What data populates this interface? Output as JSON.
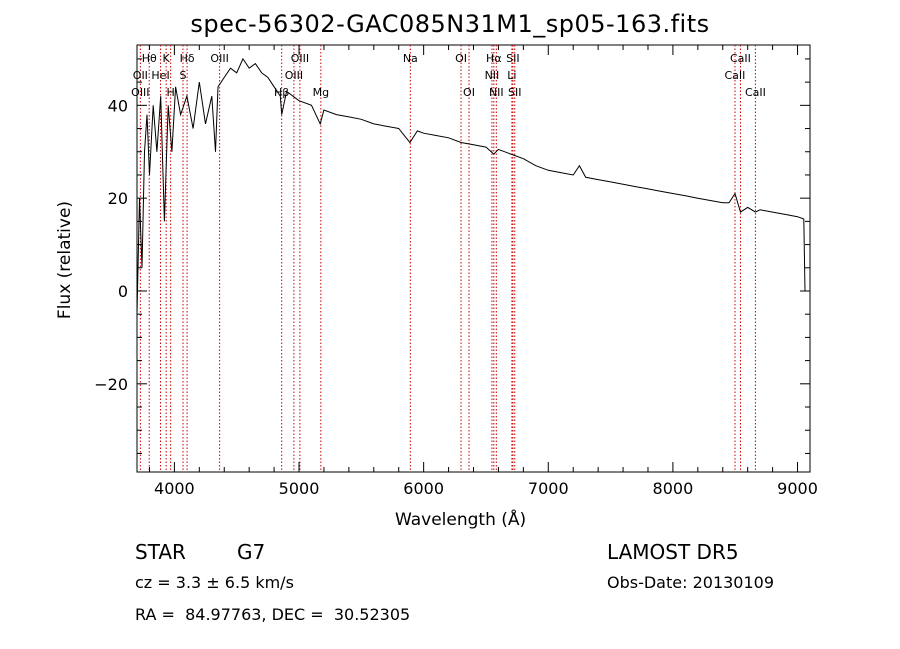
{
  "chart_data": {
    "type": "line",
    "title": "spec-56302-GAC085N31M1_sp05-163.fits",
    "xlabel": "Wavelength (Å)",
    "ylabel": "Flux (relative)",
    "xlim": [
      3700,
      9100
    ],
    "ylim": [
      -39,
      53
    ],
    "xticks": [
      4000,
      5000,
      6000,
      7000,
      8000,
      9000
    ],
    "yticks": [
      -20,
      0,
      20,
      40
    ],
    "line_color": "#000000",
    "marker_color": "#cc0000",
    "grid": false,
    "legend": "none",
    "series": [
      {
        "x": [
          3700,
          3720,
          3740,
          3760,
          3780,
          3800,
          3830,
          3860,
          3890,
          3920,
          3950,
          3980,
          4010,
          4050,
          4100,
          4150,
          4200,
          4250,
          4300,
          4330,
          4350,
          4400,
          4450,
          4500,
          4550,
          4600,
          4650,
          4700,
          4750,
          4800,
          4850,
          4861,
          4900,
          5000,
          5100,
          5170,
          5200,
          5300,
          5400,
          5500,
          5600,
          5700,
          5800,
          5890,
          5950,
          6000,
          6100,
          6200,
          6300,
          6400,
          6500,
          6563,
          6600,
          6700,
          6800,
          6900,
          7000,
          7100,
          7200,
          7250,
          7300,
          7400,
          7500,
          7600,
          7700,
          7800,
          7900,
          8000,
          8100,
          8200,
          8300,
          8400,
          8450,
          8498,
          8542,
          8600,
          8662,
          8700,
          8800,
          8900,
          9000,
          9050,
          9060
        ],
        "values": [
          -5,
          20,
          5,
          30,
          38,
          25,
          40,
          30,
          42,
          15,
          40,
          30,
          44,
          38,
          42,
          35,
          45,
          36,
          42,
          30,
          44,
          46,
          48,
          47,
          50,
          48,
          49,
          47,
          46,
          44,
          42,
          38,
          43,
          41,
          40,
          36,
          39,
          38,
          37.5,
          37,
          36,
          35.5,
          35,
          32,
          34.5,
          34,
          33.5,
          33,
          32,
          31.5,
          31,
          29.5,
          30.5,
          29.5,
          28.5,
          27,
          26,
          25.5,
          25,
          27,
          24.5,
          24,
          23.5,
          23,
          22.5,
          22,
          21.5,
          21,
          20.5,
          20,
          19.5,
          19,
          19,
          21,
          17,
          18,
          17,
          17.5,
          17,
          16.5,
          16,
          15.5,
          0
        ]
      }
    ],
    "lines_top": [
      {
        "label": "Hθ",
        "wl": 3798
      },
      {
        "label": "K",
        "wl": 3934
      },
      {
        "label": "Hδ",
        "wl": 4102
      },
      {
        "label": "OIII",
        "wl": 4363
      },
      {
        "label": "OIII",
        "wl": 5007
      },
      {
        "label": "OI",
        "wl": 6300
      },
      {
        "label": "Hα",
        "wl": 6563
      },
      {
        "label": "SII",
        "wl": 6716
      },
      {
        "label": "CaII",
        "wl": 8542
      },
      {
        "label": "Na",
        "wl": 5893
      }
    ],
    "lines_mid": [
      {
        "label": "OII",
        "wl": 3727
      },
      {
        "label": "HeI",
        "wl": 3889
      },
      {
        "label": "S",
        "wl": 4069
      },
      {
        "label": "OIII",
        "wl": 4959
      },
      {
        "label": "NII",
        "wl": 6548
      },
      {
        "label": "Li",
        "wl": 6708
      },
      {
        "label": "CaII",
        "wl": 8498
      }
    ],
    "lines_low": [
      {
        "label": "OIII",
        "wl": 3727
      },
      {
        "label": "H",
        "wl": 3970
      },
      {
        "label": "Hβ",
        "wl": 4861
      },
      {
        "label": "Mg",
        "wl": 5175
      },
      {
        "label": "OI",
        "wl": 6364
      },
      {
        "label": "NII",
        "wl": 6583
      },
      {
        "label": "SII",
        "wl": 6731
      },
      {
        "label": "CaII",
        "wl": 8662
      }
    ]
  },
  "info": {
    "object_class": "STAR",
    "subclass": "G7",
    "survey": "LAMOST DR5",
    "cz": "cz = 3.3 ± 6.5 km/s",
    "obs_date": "Obs-Date: 20130109",
    "radec": "RA =  84.97763, DEC =  30.52305"
  }
}
